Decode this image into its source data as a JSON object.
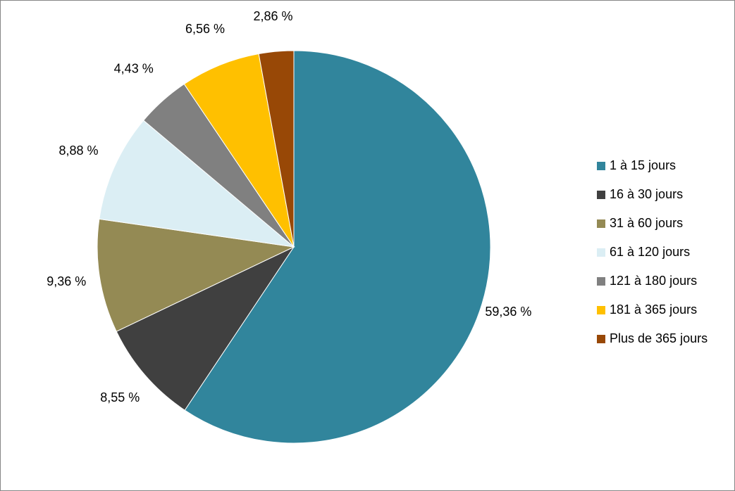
{
  "chart_data": {
    "type": "pie",
    "title": "",
    "categories": [
      "1 à 15 jours",
      "16 à 30 jours",
      "31 à 60 jours",
      "61 à 120 jours",
      "121 à 180 jours",
      "181 à 365 jours",
      "Plus de 365 jours"
    ],
    "values": [
      59.36,
      8.55,
      9.36,
      8.88,
      4.43,
      6.56,
      2.86
    ],
    "data_labels": [
      "59,36 %",
      "8,55 %",
      "9,36 %",
      "8,88 %",
      "4,43 %",
      "6,56 %",
      "2,86 %"
    ],
    "colors": [
      "#31859c",
      "#404040",
      "#948a54",
      "#dbeef4",
      "#808080",
      "#ffc000",
      "#984806"
    ],
    "start_angle_deg": 0,
    "direction": "clockwise",
    "legend_position": "right"
  }
}
